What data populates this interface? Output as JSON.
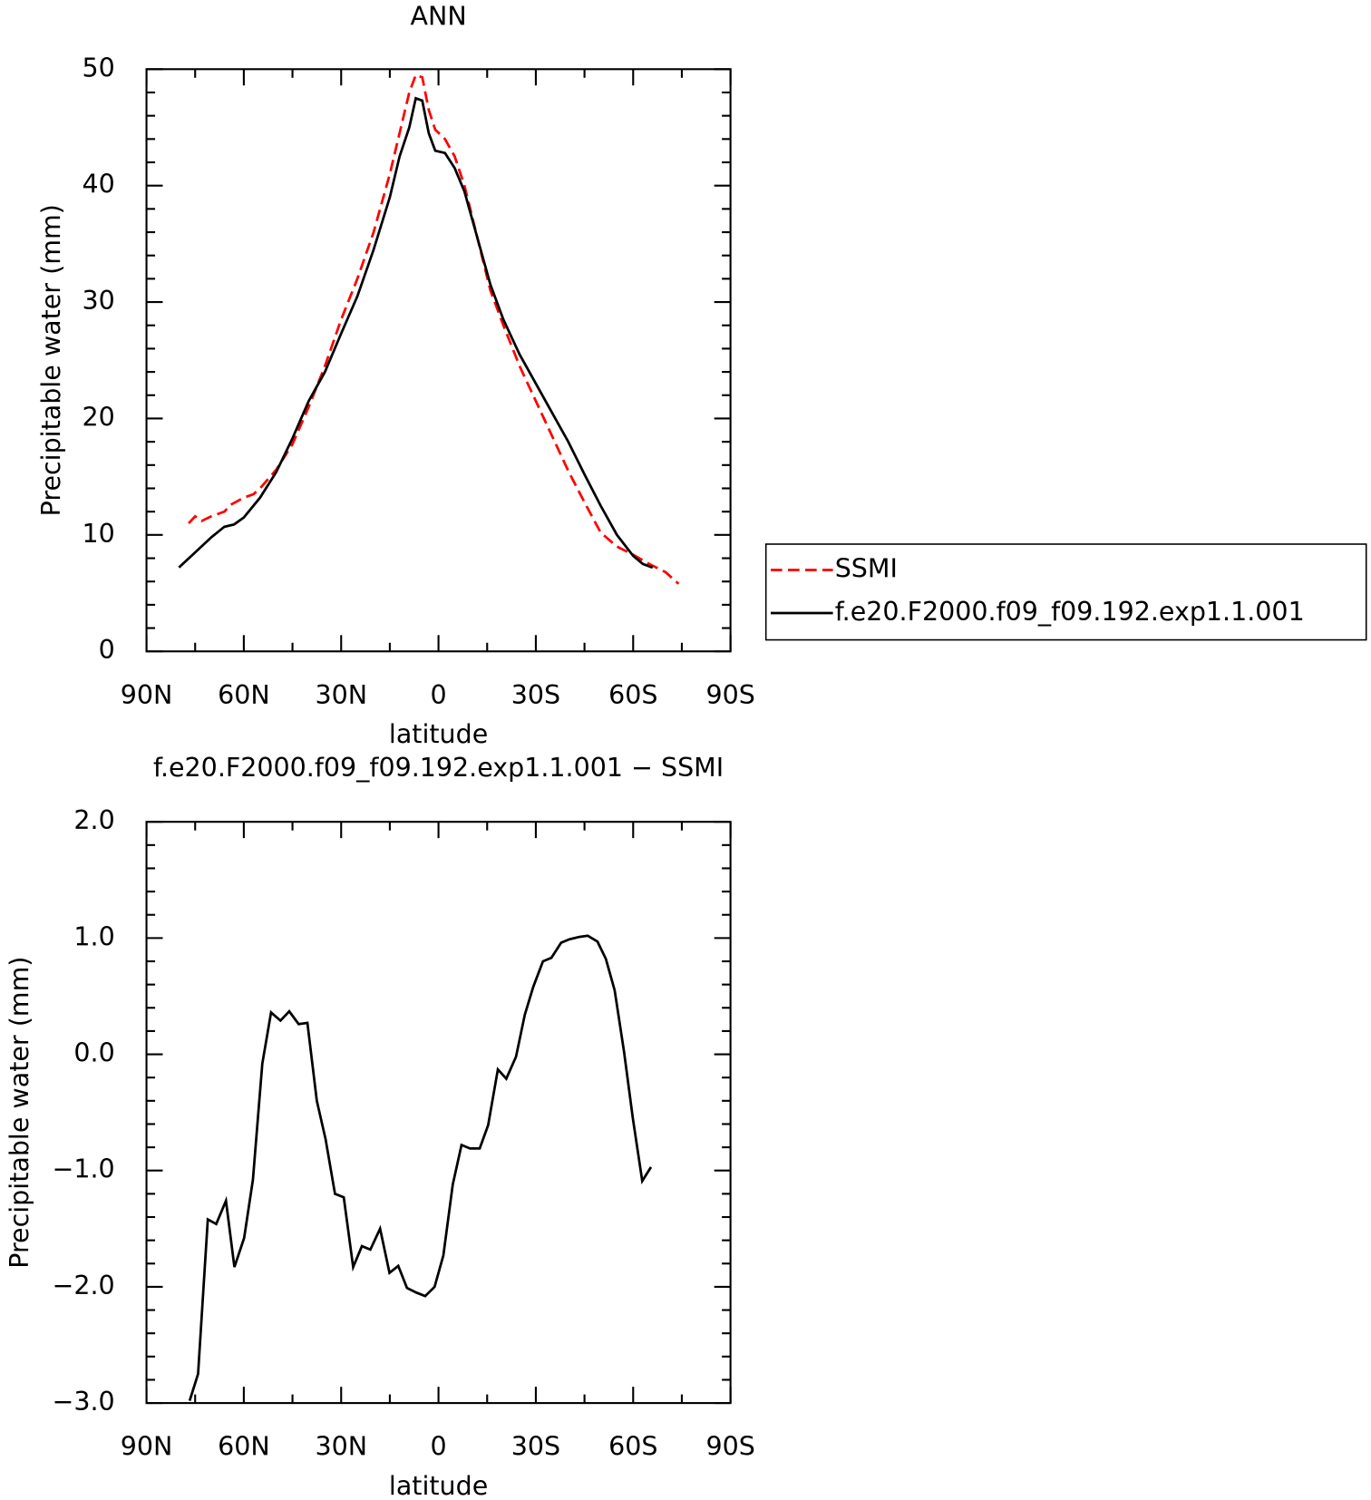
{
  "chart_data": [
    {
      "type": "line",
      "title": "ANN",
      "xlabel": "latitude",
      "ylabel": "Precipitable water (mm)",
      "xlim": [
        90,
        -90
      ],
      "xticks": [
        {
          "value": 90,
          "label": "90N"
        },
        {
          "value": 60,
          "label": "60N"
        },
        {
          "value": 30,
          "label": "30N"
        },
        0,
        {
          "value": -30,
          "label": "30S"
        },
        {
          "value": -60,
          "label": "60S"
        },
        {
          "value": -90,
          "label": "90S"
        }
      ],
      "ylim": [
        0,
        50
      ],
      "yticks": [
        0,
        10,
        20,
        30,
        40,
        50
      ],
      "xminor": 2,
      "yminor": 5,
      "legend": "right",
      "series": [
        {
          "name": "SSMI",
          "color": "#ff0000",
          "dash": true,
          "x": [
            77,
            75,
            73,
            70,
            66,
            64,
            60,
            57,
            55,
            50,
            45,
            40,
            35,
            30,
            25,
            20,
            15,
            12,
            9,
            7,
            5,
            3,
            1,
            -2,
            -5,
            -8,
            -12,
            -16,
            -20,
            -25,
            -30,
            -35,
            -40,
            -45,
            -50,
            -55,
            -60,
            -65,
            -70,
            -74
          ],
          "values": [
            11.0,
            11.6,
            11.2,
            11.6,
            12.0,
            12.6,
            13.2,
            13.5,
            14.0,
            15.6,
            17.8,
            21.0,
            24.5,
            28.5,
            32.0,
            36.0,
            41.0,
            44.5,
            48.0,
            49.5,
            49.3,
            46.5,
            44.8,
            44.0,
            42.5,
            40.0,
            35.5,
            31.0,
            28.0,
            24.5,
            21.5,
            18.5,
            15.5,
            12.8,
            10.2,
            9.0,
            8.3,
            7.5,
            6.8,
            5.8
          ]
        },
        {
          "name": "f.e20.F2000.f09_f09.192.exp1.1.001",
          "color": "#000000",
          "dash": false,
          "x": [
            80,
            75,
            70,
            66,
            63,
            60,
            55,
            50,
            45,
            40,
            35,
            30,
            25,
            20,
            15,
            12,
            9,
            7,
            5,
            3,
            1,
            -2,
            -5,
            -8,
            -12,
            -16,
            -20,
            -25,
            -30,
            -35,
            -40,
            -45,
            -50,
            -55,
            -60,
            -63,
            -66
          ],
          "values": [
            7.2,
            8.5,
            9.8,
            10.7,
            10.9,
            11.5,
            13.2,
            15.4,
            18.3,
            21.5,
            24.0,
            27.3,
            30.5,
            34.5,
            39.0,
            42.5,
            45.0,
            47.5,
            47.3,
            44.5,
            43.0,
            42.8,
            41.5,
            39.5,
            35.5,
            31.5,
            28.5,
            25.5,
            23.0,
            20.5,
            18.0,
            15.2,
            12.5,
            10.0,
            8.2,
            7.5,
            7.2
          ]
        }
      ]
    },
    {
      "type": "line",
      "title": "f.e20.F2000.f09_f09.192.exp1.1.001 − SSMI",
      "xlabel": "latitude",
      "ylabel": "Precipitable water (mm)",
      "xlim": [
        90,
        -90
      ],
      "xticks": [
        {
          "value": 90,
          "label": "90N"
        },
        {
          "value": 60,
          "label": "60N"
        },
        {
          "value": 30,
          "label": "30N"
        },
        0,
        {
          "value": -30,
          "label": "30S"
        },
        {
          "value": -60,
          "label": "60S"
        },
        {
          "value": -90,
          "label": "90S"
        }
      ],
      "ylim": [
        -3,
        2
      ],
      "yticks": [
        {
          "value": -3,
          "label": "−3.0"
        },
        {
          "value": -2,
          "label": "−2.0"
        },
        {
          "value": -1,
          "label": "−1.0"
        },
        {
          "value": 0,
          "label": "0.0"
        },
        {
          "value": 1,
          "label": "1.0"
        },
        {
          "value": 2,
          "label": "2.0"
        }
      ],
      "xminor": 2,
      "yminor": 5,
      "series": [
        {
          "color": "#000000",
          "dash": false,
          "x": [
            76.7,
            74.1,
            71.1,
            68.5,
            65.5,
            62.9,
            59.9,
            57.2,
            54.3,
            51.6,
            48.7,
            46.0,
            43.1,
            40.4,
            37.5,
            34.8,
            31.9,
            29.2,
            26.3,
            23.6,
            21.0,
            18.0,
            15.1,
            12.4,
            9.7,
            6.8,
            4.1,
            1.2,
            -1.5,
            -4.4,
            -7.1,
            -9.7,
            -12.7,
            -15.3,
            -18.3,
            -20.9,
            -23.9,
            -26.6,
            -29.2,
            -32.2,
            -34.8,
            -37.8,
            -40.4,
            -43.4,
            -46.0,
            -49.0,
            -51.6,
            -54.3,
            -57.2,
            -59.9,
            -62.8,
            -65.5
          ],
          "values": [
            -2.98,
            -2.75,
            -1.42,
            -1.46,
            -1.26,
            -1.83,
            -1.58,
            -1.08,
            -0.08,
            0.36,
            0.29,
            0.37,
            0.26,
            0.27,
            -0.4,
            -0.73,
            -1.2,
            -1.23,
            -1.83,
            -1.65,
            -1.68,
            -1.5,
            -1.88,
            -1.82,
            -2.01,
            -2.05,
            -2.08,
            -2.0,
            -1.73,
            -1.12,
            -0.78,
            -0.81,
            -0.81,
            -0.61,
            -0.13,
            -0.21,
            -0.02,
            0.34,
            0.58,
            0.8,
            0.83,
            0.96,
            0.99,
            1.01,
            1.02,
            0.97,
            0.82,
            0.55,
            0.02,
            -0.55,
            -1.09,
            -0.97
          ]
        }
      ]
    }
  ]
}
